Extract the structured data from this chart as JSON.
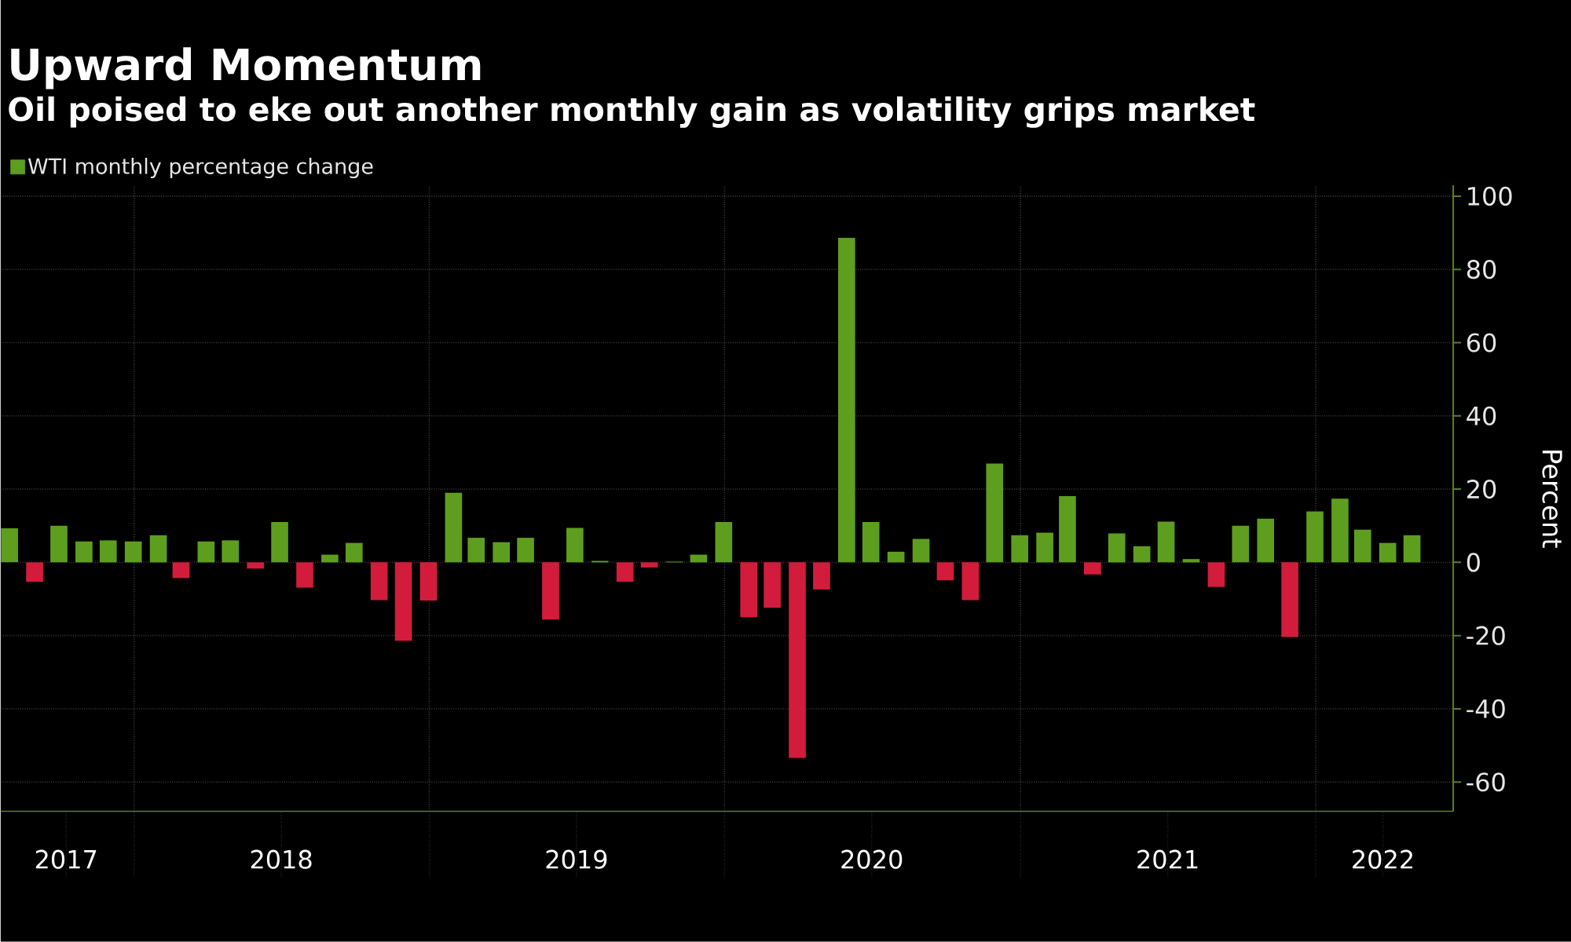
{
  "chart_data": {
    "type": "bar",
    "title": "Upward Momentum",
    "subtitle": "Oil poised to eke out another monthly gain as volatility grips market",
    "ylabel": "Percent",
    "x": [
      "2017-07-31",
      "2017-08-31",
      "2017-09-30",
      "2017-10-31",
      "2017-11-30",
      "2017-12-31",
      "2018-01-31",
      "2018-02-28",
      "2018-03-31",
      "2018-04-30",
      "2018-05-31",
      "2018-06-30",
      "2018-07-31",
      "2018-08-31",
      "2018-09-30",
      "2018-10-31",
      "2018-11-30",
      "2018-12-31",
      "2019-01-31",
      "2019-02-28",
      "2019-03-31",
      "2019-04-30",
      "2019-05-31",
      "2019-06-30",
      "2019-07-31",
      "2019-08-31",
      "2019-09-30",
      "2019-10-31",
      "2019-11-30",
      "2019-12-31",
      "2020-01-31",
      "2020-02-29",
      "2020-03-31",
      "2020-04-30",
      "2020-05-31",
      "2020-06-30",
      "2020-07-31",
      "2020-08-31",
      "2020-09-30",
      "2020-10-31",
      "2020-11-30",
      "2020-12-31",
      "2021-01-31",
      "2021-02-28",
      "2021-03-31",
      "2021-04-30",
      "2021-05-31",
      "2021-06-30",
      "2021-07-31",
      "2021-08-31",
      "2021-09-30",
      "2021-10-31",
      "2021-11-30",
      "2021-12-31",
      "2022-01-31",
      "2022-02-28",
      "2022-03-31",
      "2022-04-30"
    ],
    "series": [
      {
        "name": "WTI monthly percentage change",
        "color": "#5e9e1f",
        "values": [
          9.3,
          -5.3,
          10,
          5.7,
          6,
          5.7,
          7.4,
          -4.3,
          5.7,
          6,
          -1.7,
          11,
          -6.9,
          2.1,
          5.3,
          -10.3,
          -21.4,
          -10.4,
          19,
          6.7,
          5.5,
          6.7,
          -15.6,
          9.4,
          0.4,
          -5.3,
          -1.4,
          0.2,
          2.1,
          11,
          -15,
          -12.4,
          -53.4,
          -7.4,
          88.6,
          11,
          2.9,
          6.4,
          -4.9,
          -10.3,
          27,
          7.4,
          8.1,
          18.1,
          -3.3,
          7.9,
          4.4,
          11.1,
          0.9,
          -6.7,
          10,
          11.9,
          -20.4,
          13.9,
          17.4,
          8.9,
          5.3,
          7.4
        ],
        "colors": [
          "#5e9e1f",
          "#d31c3c",
          "#5e9e1f",
          "#5e9e1f",
          "#5e9e1f",
          "#5e9e1f",
          "#5e9e1f",
          "#d31c3c",
          "#5e9e1f",
          "#5e9e1f",
          "#d31c3c",
          "#5e9e1f",
          "#d31c3c",
          "#5e9e1f",
          "#5e9e1f",
          "#d31c3c",
          "#d31c3c",
          "#d31c3c",
          "#5e9e1f",
          "#5e9e1f",
          "#5e9e1f",
          "#5e9e1f",
          "#d31c3c",
          "#5e9e1f",
          "#5e9e1f",
          "#d31c3c",
          "#d31c3c",
          "#5e9e1f",
          "#5e9e1f",
          "#5e9e1f",
          "#d31c3c",
          "#d31c3c",
          "#d31c3c",
          "#d31c3c",
          "#5e9e1f",
          "#5e9e1f",
          "#5e9e1f",
          "#5e9e1f",
          "#d31c3c",
          "#d31c3c",
          "#5e9e1f",
          "#5e9e1f",
          "#5e9e1f",
          "#5e9e1f",
          "#d31c3c",
          "#5e9e1f",
          "#5e9e1f",
          "#5e9e1f",
          "#5e9e1f",
          "#d31c3c",
          "#5e9e1f",
          "#5e9e1f",
          "#d31c3c",
          "#5e9e1f",
          "#5e9e1f",
          "#5e9e1f",
          "#5e9e1f",
          "#5e9e1f"
        ]
      }
    ],
    "xlim": [
      "2017-07-20",
      "2022-06-20"
    ],
    "xticks": [
      {
        "value": "2017-10-09",
        "label": "2017"
      },
      {
        "value": "2018-01-01",
        "label": null
      },
      {
        "value": "2018-07-02",
        "label": "2018"
      },
      {
        "value": "2019-01-01",
        "label": null
      },
      {
        "value": "2019-07-02",
        "label": "2019"
      },
      {
        "value": "2020-01-01",
        "label": null
      },
      {
        "value": "2020-07-01",
        "label": "2020"
      },
      {
        "value": "2021-01-01",
        "label": null
      },
      {
        "value": "2021-07-02",
        "label": "2021"
      },
      {
        "value": "2022-01-01",
        "label": null
      },
      {
        "value": "2022-03-25",
        "label": "2022"
      }
    ],
    "ylim": [
      -68,
      103
    ],
    "yticks": [
      -60,
      -40,
      -20,
      0,
      20,
      40,
      60,
      80,
      100
    ],
    "grid": true,
    "legend": "top left"
  }
}
